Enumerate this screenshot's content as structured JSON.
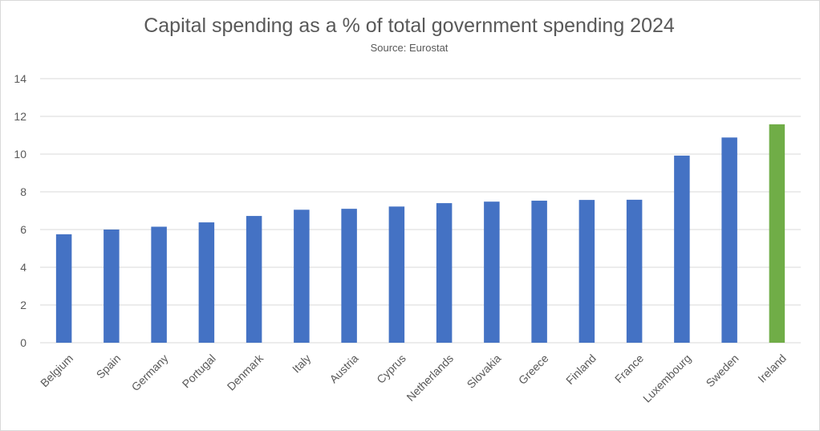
{
  "chart_data": {
    "type": "bar",
    "title": "Capital spending as a % of total government spending 2024",
    "subtitle": "Source: Eurostat",
    "xlabel": "",
    "ylabel": "",
    "ylim": [
      0,
      14
    ],
    "yticks": [
      0,
      2,
      4,
      6,
      8,
      10,
      12,
      14
    ],
    "grid": true,
    "categories": [
      "Belgium",
      "Spain",
      "Germany",
      "Portugal",
      "Denmark",
      "Italy",
      "Austria",
      "Cyprus",
      "Netherlands",
      "Slovakia",
      "Greece",
      "Finland",
      "France",
      "Luxembourg",
      "Sweden",
      "Ireland"
    ],
    "values": [
      5.75,
      6.0,
      6.15,
      6.38,
      6.72,
      7.05,
      7.1,
      7.22,
      7.4,
      7.48,
      7.53,
      7.57,
      7.58,
      9.92,
      10.88,
      11.58
    ],
    "colors": {
      "default": "#4472C4",
      "highlight": "#70AD47",
      "highlight_category": "Ireland",
      "grid": "#d9d9d9",
      "text": "#595959"
    }
  }
}
